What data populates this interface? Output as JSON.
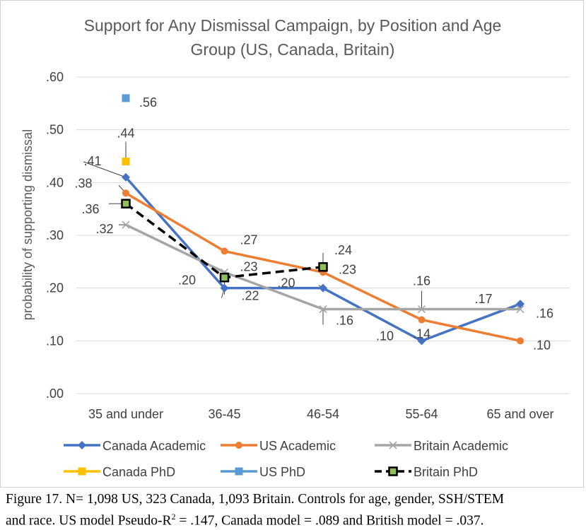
{
  "chart_data": {
    "type": "line",
    "title": "Support for Any Dismissal Campaign, by Position and Age Group (US, Canada, Britain)",
    "title_lines": [
      "Support for Any Dismissal Campaign, by Position and Age",
      "Group (US, Canada, Britain)"
    ],
    "xlabel": "",
    "ylabel": "probability of supporting dismissal",
    "categories": [
      "35 and under",
      "36-45",
      "46-54",
      "55-64",
      "65 and over"
    ],
    "ylim": [
      0,
      0.6
    ],
    "yticks": [
      ".00",
      ".10",
      ".20",
      ".30",
      ".40",
      ".50",
      ".60"
    ],
    "grid": true,
    "legend_position": "bottom",
    "series": [
      {
        "name": "Canada Academic",
        "color": "#4472c4",
        "marker": "diamond",
        "dash": false,
        "values": [
          0.41,
          0.2,
          0.2,
          0.1,
          0.17
        ],
        "labels": [
          ".41",
          ".20",
          ".20",
          ".10",
          ".17"
        ]
      },
      {
        "name": "US Academic",
        "color": "#ed7d31",
        "marker": "circle",
        "dash": false,
        "values": [
          0.38,
          0.27,
          0.23,
          0.14,
          0.1
        ],
        "labels": [
          ".38",
          ".27",
          ".23",
          ".14",
          ".10"
        ]
      },
      {
        "name": "Britain Academic",
        "color": "#a5a5a5",
        "marker": "x",
        "dash": false,
        "values": [
          0.32,
          0.23,
          0.16,
          0.16,
          0.16
        ],
        "labels": [
          ".32",
          ".23",
          ".16",
          ".16",
          ".16"
        ]
      },
      {
        "name": "Canada PhD",
        "color": "#ffc000",
        "marker": "square",
        "dash": false,
        "values": [
          0.44,
          null,
          null,
          null,
          null
        ],
        "labels": [
          ".44",
          "",
          "",
          "",
          ""
        ]
      },
      {
        "name": "US PhD",
        "color": "#5b9bd5",
        "marker": "square",
        "dash": false,
        "values": [
          0.56,
          null,
          null,
          null,
          null
        ],
        "labels": [
          ".56",
          "",
          "",
          "",
          ""
        ]
      },
      {
        "name": "Britain PhD",
        "color": "#000000",
        "marker": "square-green",
        "dash": true,
        "values": [
          0.36,
          0.22,
          0.24,
          null,
          null
        ],
        "labels": [
          ".36",
          ".22",
          ".24",
          "",
          ""
        ]
      }
    ]
  },
  "caption": {
    "line1": "Figure 17. N= 1,098 US, 323 Canada, 1,093 Britain. Controls for age, gender, SSH/STEM",
    "line2_pre": "and race. US model Pseudo-R",
    "line2_sup": "2",
    "line2_post": " = .147, Canada model = .089 and British model = .037."
  }
}
